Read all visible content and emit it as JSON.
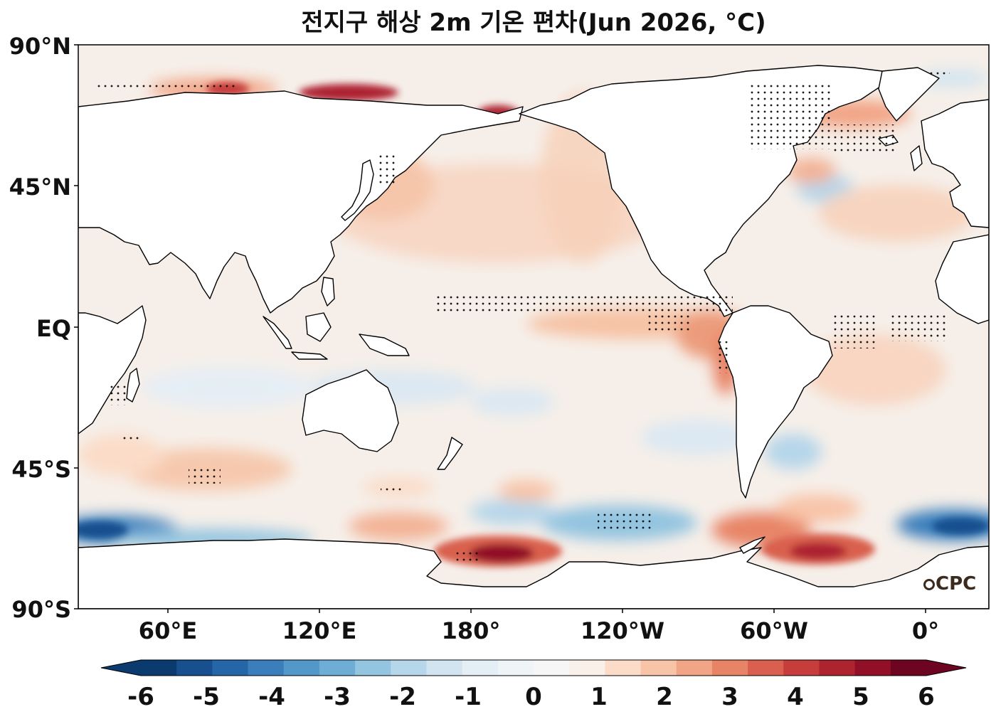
{
  "title": "전지구 해상 2m 기온 편차(Jun 2026, °C)",
  "lat_labels": [
    "90°N",
    "45°N",
    "EQ",
    "45°S",
    "90°S"
  ],
  "lon_labels": [
    "60°E",
    "120°E",
    "180°",
    "120°W",
    "60°W",
    "0°"
  ],
  "colorbar": {
    "ticks": [
      "-6",
      "-5",
      "-4",
      "-3",
      "-2",
      "-1",
      "0",
      "1",
      "2",
      "3",
      "4",
      "5",
      "6"
    ],
    "levels": [
      -6,
      -5.5,
      -5,
      -4.5,
      -4,
      -3.5,
      -3,
      -2.5,
      -2,
      -1.5,
      -1,
      -0.5,
      0,
      0.5,
      1,
      1.5,
      2,
      2.5,
      3,
      3.5,
      4,
      4.5,
      5,
      5.5,
      6
    ],
    "colors": [
      "#0a3a6e",
      "#174f8f",
      "#2466a8",
      "#3a7fbc",
      "#5298c9",
      "#6eaed6",
      "#93c4e0",
      "#b6d6ea",
      "#d2e4f0",
      "#e4eef5",
      "#eff4f7",
      "#f6f6f6",
      "#f9f0ea",
      "#fbdcc8",
      "#f8c4a8",
      "#f2a586",
      "#e88466",
      "#d9604e",
      "#c63d3c",
      "#ad2330",
      "#920f28",
      "#6d0520"
    ],
    "extend": "both",
    "cmap": "RdBu_r"
  },
  "background_color": "#f6efe9",
  "land_color": "#ffffff",
  "coast_color": "#000000",
  "stipple_color": "#000000",
  "logo": "CPC"
}
